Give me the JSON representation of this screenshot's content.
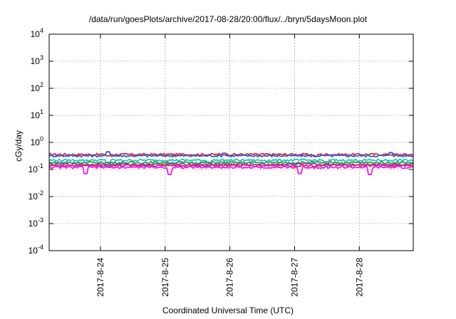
{
  "chart_data": {
    "type": "line",
    "title": "/data/run/goesPlots/archive/2017-08-28/20:00/flux/../bryn/5daysMoon.plot",
    "xlabel": "Coordinated Universal Time (UTC)",
    "ylabel": "cGy/day",
    "yscale": "log",
    "ylim": [
      "1e-4",
      "1e4"
    ],
    "yticks": [
      {
        "base": "10",
        "exp": "-4",
        "value": 0.0001
      },
      {
        "base": "10",
        "exp": "-3",
        "value": 0.001
      },
      {
        "base": "10",
        "exp": "-2",
        "value": 0.01
      },
      {
        "base": "10",
        "exp": "-1",
        "value": 0.1
      },
      {
        "base": "10",
        "exp": "0",
        "value": 1
      },
      {
        "base": "10",
        "exp": "1",
        "value": 10
      },
      {
        "base": "10",
        "exp": "2",
        "value": 100
      },
      {
        "base": "10",
        "exp": "3",
        "value": 1000
      },
      {
        "base": "10",
        "exp": "4",
        "value": 10000
      }
    ],
    "xlim": [
      "2017-08-23 05:00",
      "2017-08-28 20:00"
    ],
    "xticks": [
      "2017-8-24",
      "2017-8-25",
      "2017-8-26",
      "2017-8-27",
      "2017-8-28"
    ],
    "grid": true,
    "legend": "none",
    "series": [
      {
        "color": "#e8272a",
        "baseline": 0.36,
        "spikes": [
          [
            0.16,
            0.32
          ],
          [
            0.73,
            0.3
          ]
        ]
      },
      {
        "color": "#2b5bd6",
        "baseline": 0.32,
        "spikes": [
          [
            0.16,
            0.45
          ],
          [
            0.48,
            0.4
          ],
          [
            0.94,
            0.42
          ]
        ]
      },
      {
        "color": "#18c6c6",
        "baseline": 0.22,
        "spikes": [
          [
            0.16,
            0.12
          ],
          [
            0.44,
            0.14
          ],
          [
            0.76,
            0.13
          ]
        ]
      },
      {
        "color": "#2e9e3a",
        "baseline": 0.18,
        "spikes": []
      },
      {
        "color": "#8a3fb8",
        "baseline": 0.155,
        "spikes": []
      },
      {
        "color": "#d8246e",
        "baseline": 0.14,
        "spikes": []
      },
      {
        "color": "#f01ce8",
        "baseline": 0.12,
        "spikes": [
          [
            0.1,
            0.07
          ],
          [
            0.33,
            0.065
          ],
          [
            0.69,
            0.07
          ],
          [
            0.88,
            0.065
          ]
        ]
      }
    ]
  }
}
